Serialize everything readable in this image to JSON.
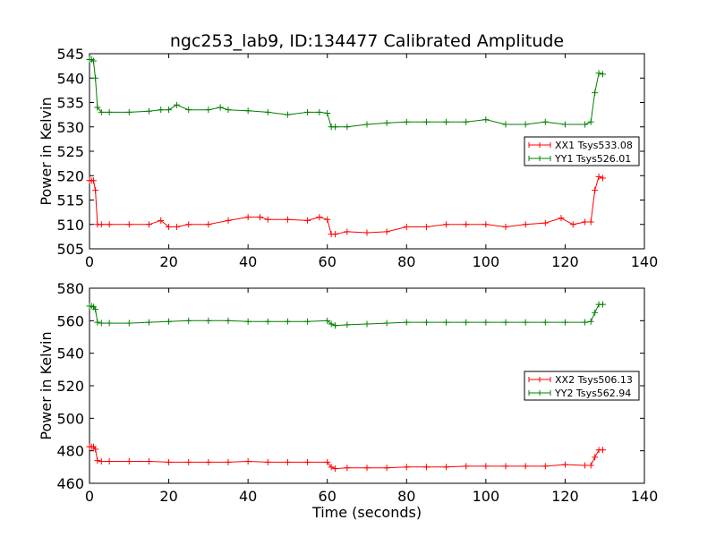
{
  "figure": {
    "title": "ngc253_lab9, ID:134477 Calibrated Amplitude",
    "xlabel": "Time (seconds)"
  },
  "chart_data": [
    {
      "type": "line",
      "ylabel": "Power in Kelvin",
      "xlim": [
        0,
        140
      ],
      "ylim": [
        505,
        545
      ],
      "xticks": [
        0,
        20,
        40,
        60,
        80,
        100,
        120,
        140
      ],
      "yticks": [
        505,
        510,
        515,
        520,
        525,
        530,
        535,
        540,
        545
      ],
      "grid": false,
      "marker": "plus",
      "legend": "center-right",
      "series": [
        {
          "name": "XX1 Tsys533.08",
          "color": "#ff0000",
          "x": [
            0,
            0.5,
            1,
            1.5,
            2,
            3,
            5,
            10,
            15,
            18,
            20,
            22,
            25,
            30,
            35,
            40,
            43,
            45,
            50,
            55,
            58,
            60,
            61,
            62,
            65,
            70,
            75,
            80,
            85,
            90,
            95,
            100,
            105,
            110,
            115,
            119,
            122,
            125,
            126.5,
            127.5,
            128.5,
            129.5
          ],
          "y": [
            519,
            519,
            519,
            517,
            510,
            510,
            510,
            510,
            510,
            510.8,
            509.5,
            509.5,
            510,
            510,
            510.8,
            511.5,
            511.5,
            511,
            511,
            510.8,
            511.5,
            511,
            508,
            508,
            508.5,
            508.3,
            508.5,
            509.5,
            509.5,
            510,
            510,
            510,
            509.5,
            510,
            510.3,
            511.3,
            510,
            510.5,
            510.5,
            517,
            519.8,
            519.5
          ]
        },
        {
          "name": "YY1 Tsys526.01",
          "color": "#008000",
          "x": [
            0,
            0.5,
            1,
            1.5,
            2,
            3,
            5,
            10,
            15,
            18,
            20,
            22,
            25,
            30,
            33,
            35,
            40,
            45,
            50,
            55,
            58,
            60,
            61,
            62,
            65,
            70,
            75,
            80,
            85,
            90,
            95,
            100,
            105,
            110,
            115,
            120,
            125,
            126.5,
            127.5,
            128.5,
            129.5
          ],
          "y": [
            543.8,
            543.8,
            543.5,
            540,
            534,
            533,
            533,
            533,
            533.2,
            533.5,
            533.5,
            534.5,
            533.5,
            533.5,
            534,
            533.5,
            533.3,
            533,
            532.5,
            533,
            533,
            532.8,
            530,
            530,
            530,
            530.5,
            530.8,
            531,
            531,
            531,
            531,
            531.5,
            530.5,
            530.5,
            531,
            530.5,
            530.5,
            531,
            537,
            541,
            540.8
          ]
        }
      ]
    },
    {
      "type": "line",
      "ylabel": "Power in Kelvin",
      "xlim": [
        0,
        140
      ],
      "ylim": [
        460,
        580
      ],
      "xticks": [
        0,
        20,
        40,
        60,
        80,
        100,
        120,
        140
      ],
      "yticks": [
        460,
        480,
        500,
        520,
        540,
        560,
        580
      ],
      "grid": false,
      "marker": "plus",
      "legend": "center-right",
      "series": [
        {
          "name": "XX2 Tsys506.13",
          "color": "#ff0000",
          "x": [
            0,
            0.5,
            1,
            1.5,
            2,
            3,
            5,
            10,
            15,
            20,
            25,
            30,
            35,
            40,
            45,
            50,
            55,
            60,
            61,
            62,
            65,
            70,
            75,
            80,
            85,
            90,
            95,
            100,
            105,
            110,
            115,
            120,
            125,
            126.5,
            127.5,
            128.5,
            129.5
          ],
          "y": [
            482.5,
            482.5,
            482.5,
            481,
            474,
            473.5,
            473.5,
            473.5,
            473.5,
            473,
            473,
            473,
            473,
            473.5,
            473,
            473,
            473,
            473,
            470,
            469,
            469.5,
            469.5,
            469.5,
            470,
            470,
            470,
            470.5,
            470.5,
            470.5,
            470.5,
            470.5,
            471.5,
            471,
            471,
            476,
            480.5,
            480.5
          ]
        },
        {
          "name": "YY2 Tsys562.94",
          "color": "#008000",
          "x": [
            0,
            0.5,
            1,
            1.5,
            2,
            3,
            5,
            10,
            15,
            20,
            25,
            30,
            35,
            40,
            45,
            50,
            55,
            60,
            61,
            62,
            65,
            70,
            75,
            80,
            85,
            90,
            95,
            100,
            105,
            110,
            115,
            120,
            125,
            126.5,
            127.5,
            128.5,
            129.5
          ],
          "y": [
            569,
            569,
            568.5,
            567,
            559,
            558.5,
            558.5,
            558.5,
            559,
            559.5,
            560,
            560,
            560,
            559.5,
            559.5,
            559.5,
            559.5,
            560,
            558,
            557,
            557.5,
            558,
            558.5,
            559,
            559,
            559,
            559,
            559,
            559,
            559,
            559,
            559,
            559,
            559.5,
            565,
            570,
            570
          ]
        }
      ]
    }
  ]
}
